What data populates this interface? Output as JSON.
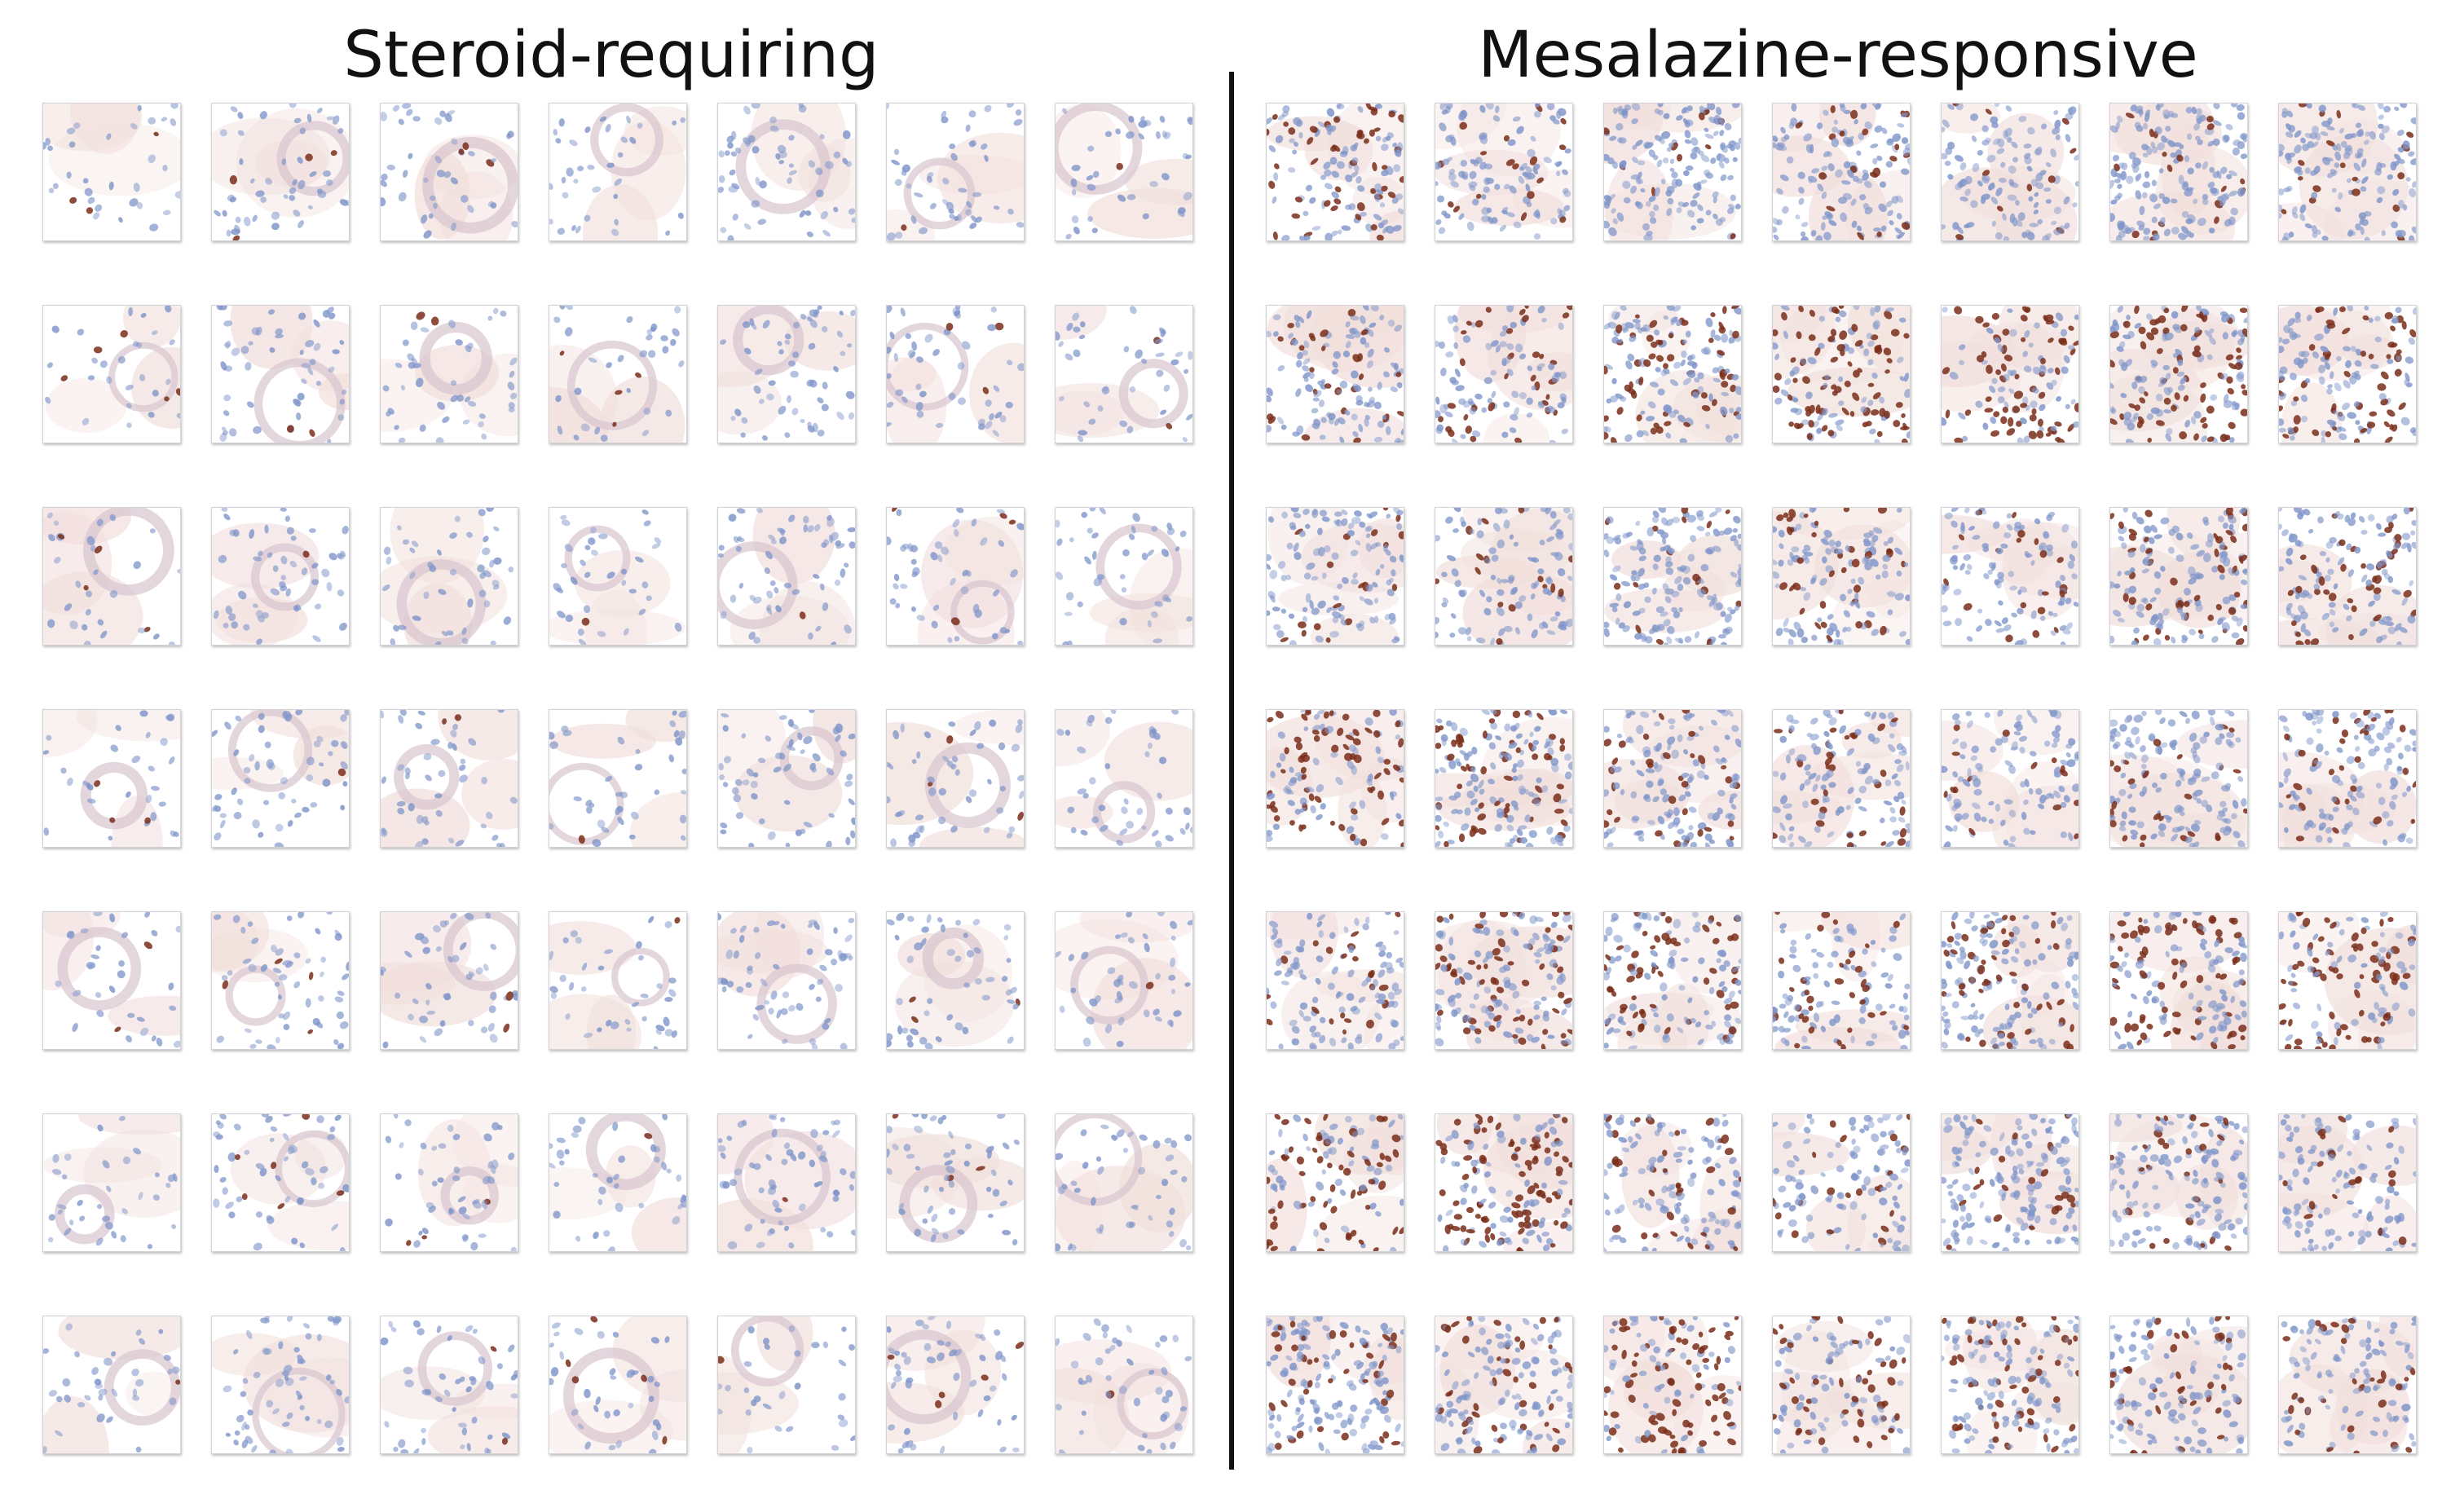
{
  "panels": [
    {
      "id": "steroid",
      "title": "Steroid-requiring",
      "rows": 7,
      "cols": 7,
      "stain": "weak",
      "tiles": [
        0.3,
        0.35,
        0.25,
        0.1,
        0.15,
        0.2,
        0.2,
        0.25,
        0.2,
        0.2,
        0.3,
        0.1,
        0.15,
        0.15,
        0.3,
        0.2,
        0.15,
        0.15,
        0.15,
        0.2,
        0.25,
        0.2,
        0.15,
        0.2,
        0.1,
        0.15,
        0.1,
        0.1,
        0.1,
        0.1,
        0.1,
        0.1,
        0.15,
        0.2,
        0.1,
        0.2,
        0.2,
        0.3,
        0.15,
        0.1,
        0.15,
        0.1,
        0.1,
        0.1,
        0.15,
        0.25,
        0.2,
        0.35,
        0.15
      ]
    },
    {
      "id": "mesalazine",
      "title": "Mesalazine-responsive",
      "rows": 7,
      "cols": 7,
      "stain": "strong",
      "tiles": [
        0.6,
        0.2,
        0.15,
        0.2,
        0.15,
        0.15,
        0.2,
        0.35,
        0.6,
        0.65,
        0.85,
        0.9,
        0.8,
        0.6,
        0.2,
        0.3,
        0.25,
        0.45,
        0.3,
        0.55,
        0.5,
        0.85,
        0.6,
        0.4,
        0.35,
        0.2,
        0.25,
        0.4,
        0.3,
        0.55,
        0.5,
        0.55,
        0.45,
        0.75,
        0.8,
        0.9,
        0.9,
        0.5,
        0.3,
        0.3,
        0.35,
        0.25,
        0.5,
        0.5,
        0.95,
        0.85,
        0.6,
        0.45,
        0.3
      ]
    }
  ],
  "colors": {
    "nucleus_blue": "#7f95c9",
    "nucleus_brown": "#7a2e1a",
    "tissue_pink": "#f1dfdc",
    "background": "#ffffff"
  }
}
